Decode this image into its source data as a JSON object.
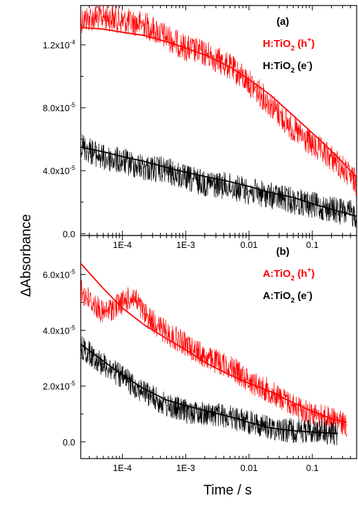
{
  "figure": {
    "y_axis_label": "ΔAbsorbance",
    "x_axis_label": "Time / s"
  },
  "colors": {
    "hole": "#ff0000",
    "electron": "#000000"
  },
  "chart_data": [
    {
      "type": "line",
      "panel_label": "(a)",
      "x_scale": "log",
      "xlim": [
        2.2e-05,
        0.5
      ],
      "ylim": [
        -1.2e-06,
        0.000145
      ],
      "x_ticks": [
        {
          "value": 0.0001,
          "label": "1E-4"
        },
        {
          "value": 0.001,
          "label": "1E-3"
        },
        {
          "value": 0.01,
          "label": "0.01"
        },
        {
          "value": 0.1,
          "label": "0.1"
        }
      ],
      "y_ticks": [
        {
          "value": 0,
          "label": "0.0"
        },
        {
          "value": 4e-05,
          "label": "4.0x10",
          "exp": "-5"
        },
        {
          "value": 8e-05,
          "label": "8.0x10",
          "exp": "-5"
        },
        {
          "value": 0.00012,
          "label": "1.2x10",
          "exp": "-4"
        }
      ],
      "legend_position": "top-right",
      "series": [
        {
          "name": "H:TiO2 (h+)",
          "legend": {
            "base": "H:TiO",
            "sub": "2",
            "mid": " (h",
            "sup": "+",
            "end": ")"
          },
          "color": "#ff0000",
          "x": [
            2.2e-05,
            5e-05,
            0.0001,
            0.00022,
            0.0005,
            0.001,
            0.0022,
            0.005,
            0.01,
            0.022,
            0.05,
            0.1,
            0.22,
            0.5
          ],
          "y": [
            0.000136,
            0.000138,
            0.000135,
            0.000133,
            0.000125,
            0.000118,
            0.000114,
            0.000106,
            9.6e-05,
            8.2e-05,
            6.6e-05,
            5.6e-05,
            4.7e-05,
            3.2e-05
          ],
          "fit_x": [
            2.2e-05,
            5e-05,
            0.0001,
            0.00022,
            0.0005,
            0.001,
            0.0022,
            0.005,
            0.01,
            0.022,
            0.05,
            0.1,
            0.22,
            0.5
          ],
          "fit_y": [
            0.000131,
            0.00013,
            0.000128,
            0.000126,
            0.000122,
            0.000118,
            0.000113,
            0.000106,
            9.8e-05,
            8.8e-05,
            7.5e-05,
            6.4e-05,
            5.1e-05,
            3.6e-05
          ]
        },
        {
          "name": "H:TiO2 (e-)",
          "legend": {
            "base": "H:TiO",
            "sub": "2",
            "mid": " (e",
            "sup": "-",
            "end": ")"
          },
          "color": "#000000",
          "x": [
            2.2e-05,
            5e-05,
            0.0001,
            0.00022,
            0.0005,
            0.001,
            0.0022,
            0.005,
            0.01,
            0.022,
            0.05,
            0.1,
            0.22,
            0.5
          ],
          "y": [
            5.6e-05,
            4.8e-05,
            4.6e-05,
            4.2e-05,
            4e-05,
            3.5e-05,
            3.2e-05,
            3e-05,
            2.7e-05,
            2.4e-05,
            2.1e-05,
            1.8e-05,
            1.5e-05,
            1.2e-05
          ],
          "fit_x": [
            2.2e-05,
            5e-05,
            0.0001,
            0.00022,
            0.0005,
            0.001,
            0.0022,
            0.005,
            0.01,
            0.022,
            0.05,
            0.1,
            0.22,
            0.5
          ],
          "fit_y": [
            5.5e-05,
            5.2e-05,
            4.9e-05,
            4.6e-05,
            4.2e-05,
            3.9e-05,
            3.6e-05,
            3.3e-05,
            3e-05,
            2.6e-05,
            2.3e-05,
            1.9e-05,
            1.5e-05,
            1.1e-05
          ]
        }
      ]
    },
    {
      "type": "line",
      "panel_label": "(b)",
      "x_scale": "log",
      "xlim": [
        2.2e-05,
        0.5
      ],
      "ylim": [
        -6e-06,
        7.4e-05
      ],
      "x_ticks": [
        {
          "value": 0.0001,
          "label": "1E-4"
        },
        {
          "value": 0.001,
          "label": "1E-3"
        },
        {
          "value": 0.01,
          "label": "0.01"
        },
        {
          "value": 0.1,
          "label": "0.1"
        }
      ],
      "y_ticks": [
        {
          "value": 0,
          "label": "0.0"
        },
        {
          "value": 2e-05,
          "label": "2.0x10",
          "exp": "-5"
        },
        {
          "value": 4e-05,
          "label": "4.0x10",
          "exp": "-5"
        },
        {
          "value": 6e-05,
          "label": "6.0x10",
          "exp": "-5"
        }
      ],
      "legend_position": "top-right",
      "series": [
        {
          "name": "A:TiO2 (h+)",
          "legend": {
            "base": "A:TiO",
            "sub": "2",
            "mid": " (h",
            "sup": "+",
            "end": ")"
          },
          "color": "#ff0000",
          "x": [
            2.2e-05,
            5e-05,
            0.0001,
            0.00015,
            0.00022,
            0.0005,
            0.001,
            0.0022,
            0.005,
            0.01,
            0.022,
            0.05,
            0.1,
            0.22,
            0.35
          ],
          "y": [
            5.4e-05,
            4.6e-05,
            5e-05,
            5.2e-05,
            4.6e-05,
            3.9e-05,
            3.5e-05,
            3e-05,
            2.7e-05,
            2.2e-05,
            1.8e-05,
            1.3e-05,
            1e-05,
            8e-06,
            6e-06
          ],
          "fit_x": [
            2.2e-05,
            5e-05,
            0.0001,
            0.00022,
            0.0005,
            0.001,
            0.0022,
            0.005,
            0.01,
            0.022,
            0.05,
            0.1,
            0.22,
            0.35
          ],
          "fit_y": [
            6.4e-05,
            5.5e-05,
            4.8e-05,
            4.2e-05,
            3.7e-05,
            3.3e-05,
            2.8e-05,
            2.4e-05,
            2.1e-05,
            1.8e-05,
            1.4e-05,
            1.1e-05,
            8e-06,
            7e-06
          ]
        },
        {
          "name": "A:TiO2 (e-)",
          "legend": {
            "base": "A:TiO",
            "sub": "2",
            "mid": " (e",
            "sup": "-",
            "end": ")"
          },
          "color": "#000000",
          "x": [
            2.2e-05,
            5e-05,
            0.0001,
            0.00022,
            0.0005,
            0.001,
            0.0022,
            0.005,
            0.01,
            0.022,
            0.05,
            0.1,
            0.25
          ],
          "y": [
            3.4e-05,
            2.8e-05,
            2.3e-05,
            1.8e-05,
            1.3e-05,
            1.1e-05,
            1e-05,
            9e-06,
            7e-06,
            5e-06,
            4e-06,
            4e-06,
            3e-06
          ],
          "fit_x": [
            2.2e-05,
            5e-05,
            0.0001,
            0.00022,
            0.0005,
            0.001,
            0.0022,
            0.005,
            0.01,
            0.022,
            0.05,
            0.1,
            0.25
          ],
          "fit_y": [
            3.5e-05,
            2.9e-05,
            2.4e-05,
            1.9e-05,
            1.5e-05,
            1.3e-05,
            1.1e-05,
            9e-06,
            7e-06,
            5e-06,
            4e-06,
            3.5e-06,
            3e-06
          ]
        }
      ]
    }
  ]
}
